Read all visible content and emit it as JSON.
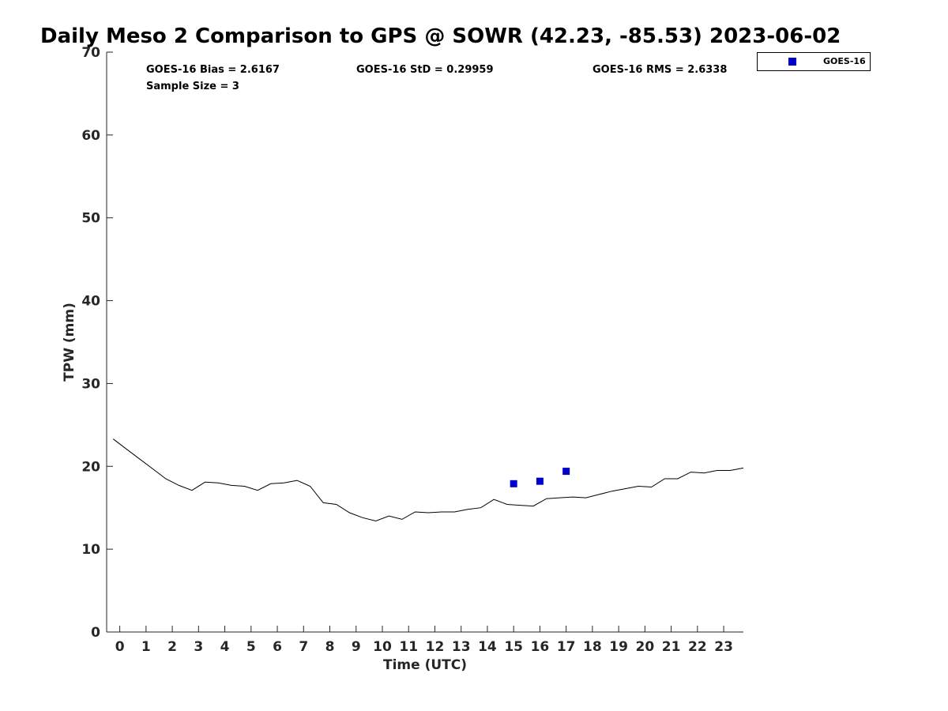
{
  "chart_data": {
    "type": "line",
    "title": "Daily Meso 2 Comparison to GPS @ SOWR (42.23, -85.53) 2023-06-02",
    "xlabel": "Time (UTC)",
    "ylabel": "TPW (mm)",
    "xlim": [
      -0.5,
      23.75
    ],
    "ylim": [
      0,
      70
    ],
    "x_ticks": [
      0,
      1,
      2,
      3,
      4,
      5,
      6,
      7,
      8,
      9,
      10,
      11,
      12,
      13,
      14,
      15,
      16,
      17,
      18,
      19,
      20,
      21,
      22,
      23
    ],
    "y_ticks": [
      0,
      10,
      20,
      30,
      40,
      50,
      60,
      70
    ],
    "grid": false,
    "legend_position": "outside-top-right",
    "series": [
      {
        "type": "line",
        "color": "#000000",
        "x": [
          -0.25,
          0.25,
          0.75,
          1.25,
          1.75,
          2.25,
          2.75,
          3.25,
          3.75,
          4.25,
          4.75,
          5.25,
          5.75,
          6.25,
          6.75,
          7.25,
          7.75,
          8.25,
          8.75,
          9.25,
          9.75,
          10.25,
          10.75,
          11.25,
          11.75,
          12.25,
          12.75,
          13.25,
          13.75,
          14.25,
          14.75,
          15.25,
          15.75,
          16.25,
          16.75,
          17.25,
          17.75,
          18.25,
          18.75,
          19.25,
          19.75,
          20.25,
          20.75,
          21.25,
          21.75,
          22.25,
          22.75,
          23.25,
          23.75
        ],
        "y": [
          23.3,
          22.1,
          20.9,
          19.7,
          18.5,
          17.7,
          17.1,
          18.1,
          18.0,
          17.7,
          17.6,
          17.1,
          17.9,
          18.0,
          18.3,
          17.6,
          15.6,
          15.4,
          14.4,
          13.8,
          13.4,
          14.0,
          13.6,
          14.5,
          14.4,
          14.5,
          14.5,
          14.8,
          15.0,
          16.0,
          15.4,
          15.3,
          15.2,
          16.1,
          16.2,
          16.3,
          16.2,
          16.6,
          17.0,
          17.3,
          17.6,
          17.5,
          18.5,
          18.5,
          19.3,
          19.2,
          19.5,
          19.5,
          19.8
        ]
      },
      {
        "name": "GOES-16",
        "type": "scatter",
        "color": "#0000cc",
        "marker": "square",
        "x": [
          15,
          16,
          17
        ],
        "y": [
          17.9,
          18.2,
          19.4
        ]
      }
    ],
    "annotations": {
      "bias": "GOES-16 Bias = 2.6167",
      "std": "GOES-16 StD = 0.29959",
      "rms": "GOES-16 RMS = 2.6338",
      "sample": "Sample Size = 3"
    }
  }
}
